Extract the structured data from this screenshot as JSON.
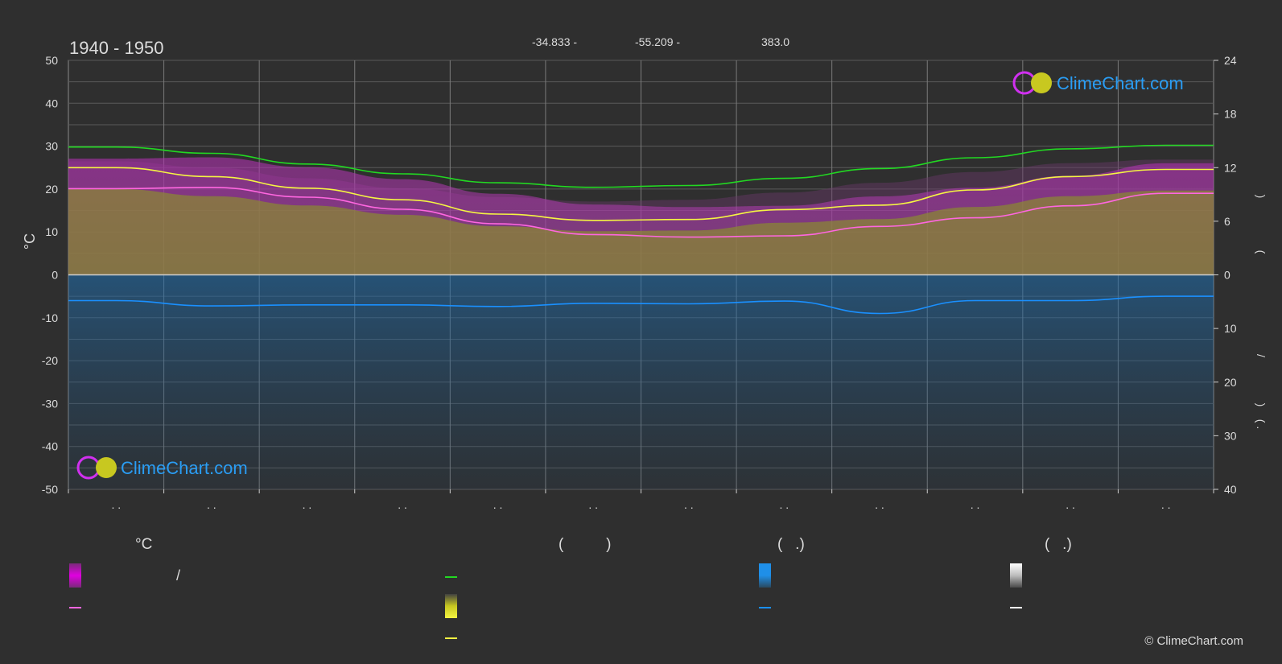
{
  "header": {
    "period": "1940 - 1950",
    "latitude": "-34.833 -",
    "longitude": "-55.209 -",
    "elevation": "383.0"
  },
  "brand": {
    "logo_text": "ClimeChart.com",
    "copyright": "© ClimeChart.com"
  },
  "axes": {
    "left_unit": "°C",
    "left_ticks": [
      "50",
      "40",
      "30",
      "20",
      "10",
      "0",
      "-10",
      "-20",
      "-30",
      "-40",
      "-50"
    ],
    "right_top_ticks": [
      "24",
      "18",
      "12",
      "6",
      "0"
    ],
    "right_bottom_ticks": [
      "10",
      "20",
      "30",
      "40"
    ],
    "right_marks_upper": [
      ")",
      "("
    ],
    "right_marks_lower": [
      "/",
      ")",
      "( ."
    ],
    "month_placeholders": [
      ". .",
      ". .",
      ". .",
      ". .",
      ". .",
      ". .",
      ". .",
      ". .",
      ". .",
      ". .",
      ". .",
      ". ."
    ]
  },
  "legend": {
    "col1_head": "°C",
    "col1_slash": "/",
    "col2_head": "(          )",
    "col3_head": "(   .)",
    "col4_head": "(   .)"
  },
  "colors": {
    "background": "#2f2f2f",
    "daylight": "#22d822",
    "sunshine": "#f5f542",
    "temp_mean": "#ff66e0",
    "temp_band": "#e000e0",
    "precip": "#1f8fe8",
    "precip_line": "#1a90ff",
    "grid": "#5a5a5a",
    "logo": "#2a9df4"
  },
  "chart_data": {
    "type": "area",
    "title": "",
    "months": 12,
    "ylim_left": [
      -50,
      50
    ],
    "ylim_right_upper": [
      0,
      24
    ],
    "ylim_right_lower": [
      0,
      40
    ],
    "grid": true,
    "series": [
      {
        "name": "",
        "kind": "daylight-hours",
        "axis": "right-upper",
        "values": [
          14.3,
          13.6,
          12.4,
          11.3,
          10.3,
          9.8,
          10.0,
          10.8,
          11.9,
          13.1,
          14.1,
          14.5
        ]
      },
      {
        "name": "",
        "kind": "sunshine-hours",
        "axis": "right-upper",
        "values": [
          12.0,
          11.0,
          9.7,
          8.4,
          6.8,
          6.1,
          6.2,
          7.3,
          7.8,
          9.5,
          11.0,
          11.8
        ]
      },
      {
        "name": "",
        "kind": "mean-temperature",
        "axis": "left",
        "values": [
          20.1,
          20.4,
          18.1,
          15.3,
          11.9,
          9.4,
          8.8,
          9.1,
          11.3,
          13.3,
          16.1,
          19.0
        ]
      },
      {
        "name": "",
        "kind": "precipitation",
        "axis": "right-lower",
        "values": [
          4.8,
          5.8,
          5.6,
          5.6,
          5.9,
          5.3,
          5.4,
          4.9,
          7.2,
          4.8,
          4.8,
          4.0
        ]
      }
    ]
  }
}
